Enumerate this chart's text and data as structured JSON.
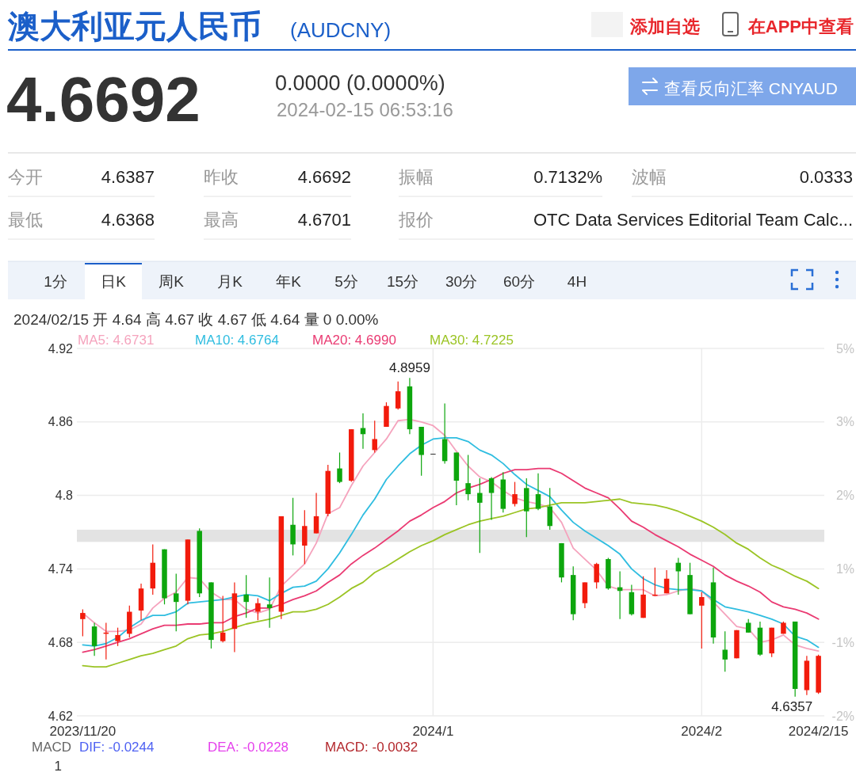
{
  "chart_data": [
    {
      "type": "other",
      "title": "澳大利亚元人民币",
      "subtitle": "(AUDCNY)",
      "annotations": [
        "添加自选",
        "在APP中查看",
        "4.6692",
        "0.0000 (0.0000%)",
        "2024-02-15 06:53:16",
        "查看反向汇率 CNYAUD",
        "今开",
        "4.6387",
        "昨收",
        "4.6692",
        "振幅",
        "0.7132%",
        "波幅",
        "0.0333",
        "最低",
        "4.6368",
        "最高",
        "4.6701",
        "报价",
        "OTC Data Services Editorial Team Calc...",
        "1分",
        "日K",
        "周K",
        "月K",
        "年K",
        "5分",
        "15分",
        "30分",
        "60分",
        "4H"
      ]
    },
    {
      "type": "candlestick",
      "subtitle": "2024/02/15 开 4.64 高 4.67 收 4.67 低 4.64 量 0 0.00%",
      "categories": [
        "2023/11/20",
        null,
        null,
        null,
        null,
        null,
        null,
        null,
        null,
        null,
        null,
        null,
        null,
        null,
        null,
        null,
        null,
        null,
        null,
        null,
        null,
        null,
        null,
        null,
        null,
        null,
        null,
        null,
        null,
        null,
        "2024/1",
        null,
        null,
        null,
        null,
        null,
        null,
        null,
        null,
        null,
        null,
        null,
        null,
        null,
        null,
        null,
        null,
        null,
        null,
        null,
        null,
        null,
        null,
        "2024/2",
        null,
        null,
        null,
        null,
        null,
        null,
        null,
        null,
        null,
        "2024/2/15"
      ],
      "ohlc": [
        [
          4.699,
          4.707,
          4.685,
          4.704
        ],
        [
          4.693,
          4.696,
          4.669,
          4.677
        ],
        [
          4.687,
          4.696,
          4.666,
          4.688
        ],
        [
          4.681,
          4.692,
          4.677,
          4.686
        ],
        [
          4.687,
          4.71,
          4.684,
          4.705
        ],
        [
          4.706,
          4.728,
          4.698,
          4.724
        ],
        [
          4.724,
          4.76,
          4.719,
          4.745
        ],
        [
          4.756,
          4.756,
          4.711,
          4.716
        ],
        [
          4.72,
          4.736,
          4.689,
          4.713
        ],
        [
          4.714,
          4.764,
          4.711,
          4.764
        ],
        [
          4.771,
          4.773,
          4.717,
          4.72
        ],
        [
          4.729,
          4.729,
          4.675,
          4.682
        ],
        [
          4.681,
          4.718,
          4.68,
          4.688
        ],
        [
          4.691,
          4.729,
          4.672,
          4.72
        ],
        [
          4.719,
          4.735,
          4.7,
          4.713
        ],
        [
          4.705,
          4.716,
          4.698,
          4.712
        ],
        [
          4.711,
          4.733,
          4.692,
          4.708
        ],
        [
          4.705,
          4.783,
          4.699,
          4.783
        ],
        [
          4.776,
          4.798,
          4.751,
          4.76
        ],
        [
          4.759,
          4.788,
          4.744,
          4.775
        ],
        [
          4.769,
          4.802,
          4.769,
          4.783
        ],
        [
          4.785,
          4.825,
          4.783,
          4.82
        ],
        [
          4.822,
          4.835,
          4.81,
          4.811
        ],
        [
          4.812,
          4.854,
          4.811,
          4.854
        ],
        [
          4.855,
          4.867,
          4.838,
          4.85
        ],
        [
          4.837,
          4.861,
          4.835,
          4.846
        ],
        [
          4.856,
          4.876,
          4.856,
          4.873
        ],
        [
          4.871,
          4.893,
          4.87,
          4.885
        ],
        [
          4.889,
          4.8959,
          4.85,
          4.854
        ],
        [
          4.856,
          4.856,
          4.816,
          4.833
        ],
        [
          4.834,
          4.834,
          4.834,
          4.834
        ],
        [
          4.846,
          4.875,
          4.826,
          4.828
        ],
        [
          4.835,
          4.835,
          4.792,
          4.812
        ],
        [
          4.81,
          4.833,
          4.796,
          4.801
        ],
        [
          4.802,
          4.814,
          4.753,
          4.794
        ],
        [
          4.814,
          4.815,
          4.78,
          4.802
        ],
        [
          4.813,
          4.819,
          4.786,
          4.789
        ],
        [
          4.793,
          4.811,
          4.791,
          4.801
        ],
        [
          4.806,
          4.814,
          4.766,
          4.787
        ],
        [
          4.801,
          4.818,
          4.788,
          4.789
        ],
        [
          4.791,
          4.806,
          4.772,
          4.775
        ],
        [
          4.761,
          4.761,
          4.729,
          4.733
        ],
        [
          4.735,
          4.742,
          4.698,
          4.703
        ],
        [
          4.712,
          4.729,
          4.708,
          4.729
        ],
        [
          4.729,
          4.745,
          4.724,
          4.744
        ],
        [
          4.748,
          4.749,
          4.723,
          4.724
        ],
        [
          4.725,
          4.738,
          4.699,
          4.722
        ],
        [
          4.721,
          4.727,
          4.702,
          4.703
        ],
        [
          4.7,
          4.734,
          4.7,
          4.719
        ],
        [
          4.718,
          4.741,
          4.718,
          4.719
        ],
        [
          4.72,
          4.739,
          4.72,
          4.732
        ],
        [
          4.745,
          4.749,
          4.719,
          4.738
        ],
        [
          4.735,
          4.745,
          4.703,
          4.703
        ],
        [
          4.71,
          4.721,
          4.675,
          4.717
        ],
        [
          4.729,
          4.741,
          4.679,
          4.684
        ],
        [
          4.674,
          4.689,
          4.656,
          4.666
        ],
        [
          4.667,
          4.69,
          4.667,
          4.69
        ],
        [
          4.696,
          4.699,
          4.688,
          4.688
        ],
        [
          4.692,
          4.697,
          4.669,
          4.67
        ],
        [
          4.671,
          4.692,
          4.668,
          4.692
        ],
        [
          4.687,
          4.697,
          4.687,
          4.696
        ],
        [
          4.697,
          4.697,
          4.6357,
          4.642
        ],
        [
          4.641,
          4.669,
          4.637,
          4.665
        ],
        [
          4.639,
          4.67,
          4.638,
          4.669
        ]
      ],
      "colors": [
        "#f21b0c",
        "#0da60d",
        "#f21b0c",
        "#f21b0c",
        "#f21b0c",
        "#f21b0c",
        "#f21b0c",
        "#0da60d",
        "#0da60d",
        "#f21b0c",
        "#0da60d",
        "#0da60d",
        "#f21b0c",
        "#f21b0c",
        "#0da60d",
        "#f21b0c",
        "#0da60d",
        "#f21b0c",
        "#0da60d",
        "#f21b0c",
        "#f21b0c",
        "#f21b0c",
        "#0da60d",
        "#f21b0c",
        "#0da60d",
        "#f21b0c",
        "#f21b0c",
        "#f21b0c",
        "#0da60d",
        "#0da60d",
        "#333333",
        "#0da60d",
        "#0da60d",
        "#0da60d",
        "#0da60d",
        "#0da60d",
        "#0da60d",
        "#f21b0c",
        "#0da60d",
        "#0da60d",
        "#0da60d",
        "#0da60d",
        "#0da60d",
        "#f21b0c",
        "#f21b0c",
        "#0da60d",
        "#0da60d",
        "#0da60d",
        "#f21b0c",
        "#f21b0c",
        "#f21b0c",
        "#0da60d",
        "#0da60d",
        "#f21b0c",
        "#0da60d",
        "#0da60d",
        "#f21b0c",
        "#0da60d",
        "#0da60d",
        "#f21b0c",
        "#f21b0c",
        "#0da60d",
        "#f21b0c",
        "#f21b0c"
      ],
      "series": [
        {
          "name": "MA5: 4.6731",
          "type": "line",
          "color": "#f5a3bd",
          "values": [
            4.704,
            4.696,
            4.689,
            4.689,
            4.69,
            4.695,
            4.708,
            4.716,
            4.721,
            4.733,
            4.732,
            4.721,
            4.715,
            4.715,
            4.707,
            4.704,
            4.707,
            4.726,
            4.735,
            4.744,
            4.761,
            4.785,
            4.79,
            4.808,
            4.824,
            4.835,
            4.846,
            4.861,
            4.862,
            4.86,
            4.857,
            4.849,
            4.836,
            4.824,
            4.815,
            4.811,
            4.804,
            4.798,
            4.795,
            4.793,
            4.79,
            4.778,
            4.757,
            4.748,
            4.739,
            4.726,
            4.723,
            4.723,
            4.723,
            4.718,
            4.719,
            4.722,
            4.724,
            4.722,
            4.713,
            4.703,
            4.693,
            4.691,
            4.68,
            4.682,
            4.686,
            4.678,
            4.675,
            4.673
          ]
        },
        {
          "name": "MA10: 4.6764",
          "type": "line",
          "color": "#2fbde0",
          "values": [
            4.678,
            4.677,
            4.679,
            4.684,
            4.692,
            4.698,
            4.702,
            4.702,
            4.705,
            4.712,
            4.713,
            4.714,
            4.715,
            4.717,
            4.719,
            4.718,
            4.714,
            4.72,
            4.725,
            4.726,
            4.73,
            4.74,
            4.753,
            4.768,
            4.784,
            4.797,
            4.813,
            4.824,
            4.834,
            4.841,
            4.846,
            4.847,
            4.847,
            4.844,
            4.837,
            4.833,
            4.826,
            4.817,
            4.809,
            4.804,
            4.799,
            4.788,
            4.778,
            4.771,
            4.765,
            4.759,
            4.752,
            4.74,
            4.732,
            4.727,
            4.724,
            4.723,
            4.723,
            4.722,
            4.715,
            4.709,
            4.707,
            4.705,
            4.702,
            4.699,
            4.695,
            4.685,
            4.682,
            4.676
          ]
        },
        {
          "name": "MA20: 4.6990",
          "type": "line",
          "color": "#ea3a72",
          "values": [
            4.672,
            4.674,
            4.677,
            4.68,
            4.683,
            4.687,
            4.691,
            4.694,
            4.694,
            4.695,
            4.695,
            4.696,
            4.696,
            4.701,
            4.704,
            4.708,
            4.708,
            4.711,
            4.715,
            4.718,
            4.722,
            4.729,
            4.735,
            4.744,
            4.751,
            4.757,
            4.764,
            4.771,
            4.779,
            4.784,
            4.79,
            4.795,
            4.802,
            4.806,
            4.809,
            4.813,
            4.818,
            4.821,
            4.821,
            4.822,
            4.822,
            4.818,
            4.812,
            4.806,
            4.802,
            4.798,
            4.789,
            4.779,
            4.774,
            4.768,
            4.763,
            4.758,
            4.752,
            4.747,
            4.742,
            4.735,
            4.73,
            4.726,
            4.721,
            4.713,
            4.709,
            4.707,
            4.704,
            4.699
          ]
        },
        {
          "name": "MA30: 4.7225",
          "type": "line",
          "color": "#9bc424",
          "values": [
            4.661,
            4.66,
            4.66,
            4.663,
            4.666,
            4.669,
            4.671,
            4.674,
            4.677,
            4.683,
            4.686,
            4.687,
            4.689,
            4.692,
            4.695,
            4.697,
            4.699,
            4.702,
            4.705,
            4.705,
            4.707,
            4.711,
            4.717,
            4.724,
            4.729,
            4.737,
            4.742,
            4.748,
            4.754,
            4.759,
            4.763,
            4.768,
            4.772,
            4.776,
            4.779,
            4.781,
            4.783,
            4.786,
            4.789,
            4.79,
            4.792,
            4.794,
            4.794,
            4.794,
            4.795,
            4.796,
            4.797,
            4.794,
            4.793,
            4.792,
            4.79,
            4.787,
            4.783,
            4.779,
            4.774,
            4.768,
            4.761,
            4.756,
            4.749,
            4.743,
            4.739,
            4.734,
            4.73,
            4.724
          ]
        }
      ],
      "ylim": [
        4.62,
        4.92
      ],
      "yticks": [
        4.62,
        4.68,
        4.74,
        4.8,
        4.86,
        4.92
      ],
      "y2_categories": [
        "5%",
        "3%",
        "2%",
        "1%",
        "-1%",
        "-2%"
      ],
      "annotations": [
        "4.8959",
        "4.6357"
      ],
      "bands": [
        {
          "axis": "y",
          "from": 4.762,
          "to": 4.772,
          "color": "#e3e3e3"
        }
      ],
      "grid": true,
      "legend": "top"
    },
    {
      "type": "other",
      "title": "MACD",
      "annotations": [
        "DIF: -0.0244",
        "DEA: -0.0228",
        "MACD: -0.0032",
        "1"
      ]
    }
  ]
}
